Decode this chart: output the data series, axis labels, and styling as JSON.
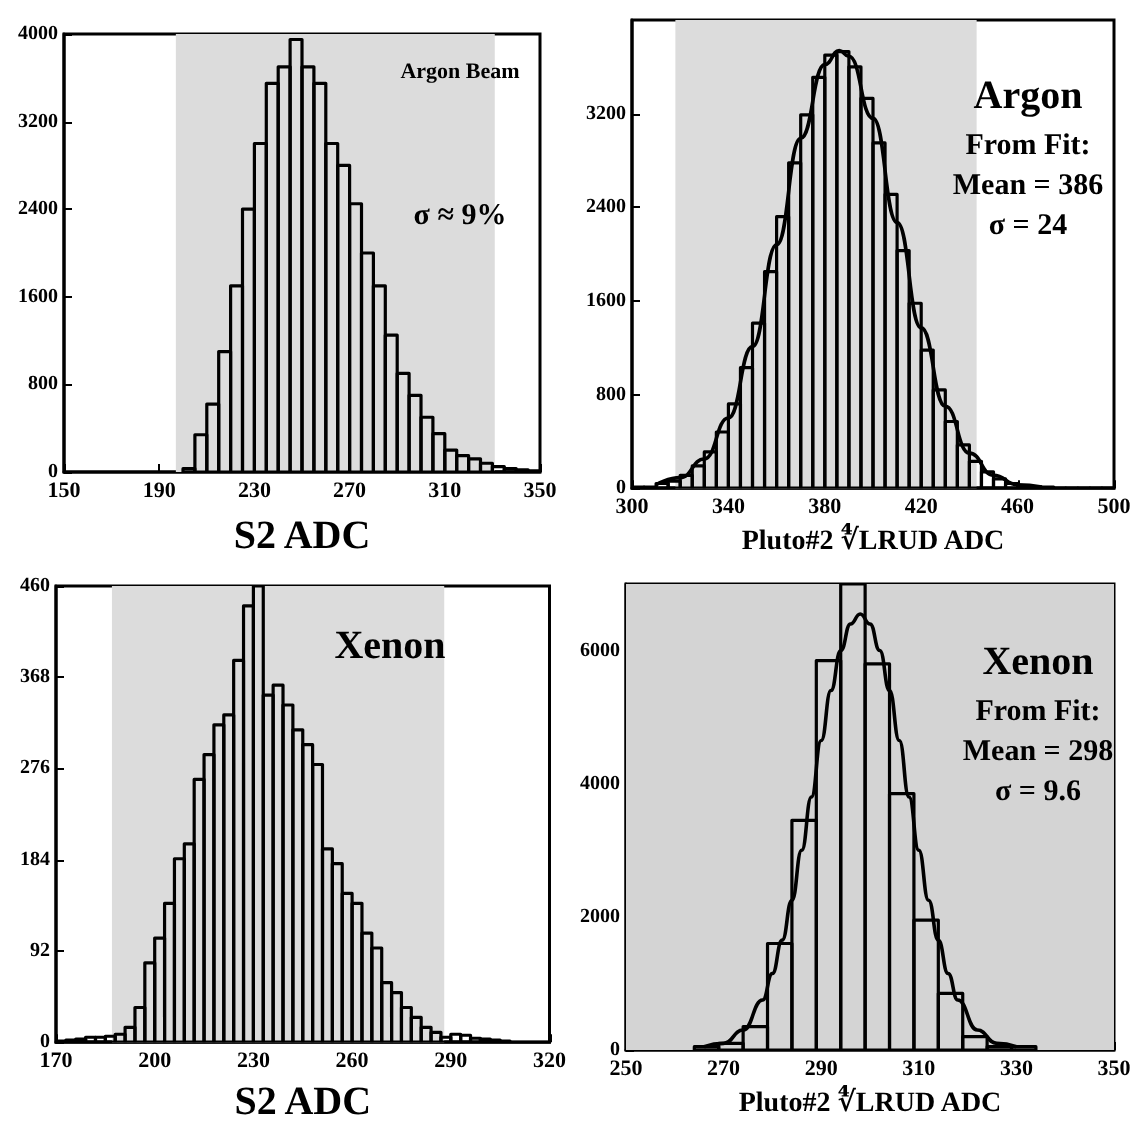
{
  "chart_data": [
    {
      "type": "histogram",
      "xlabel": "S2 ADC",
      "annotations": [
        "Argon Beam",
        "σ ≈ 9%"
      ],
      "xlim": [
        150,
        350
      ],
      "xticks": [
        150,
        190,
        230,
        270,
        310,
        350
      ],
      "ylim": [
        0,
        4000
      ],
      "yticks": [
        0,
        800,
        1600,
        2400,
        3200,
        4000
      ],
      "bands": [
        {
          "axis": "x",
          "from": 197,
          "to": 331,
          "color": "#dcdcdc"
        }
      ],
      "color": "#000000",
      "bins": [
        200,
        205,
        210,
        215,
        220,
        225,
        230,
        235,
        240,
        245,
        250,
        255,
        260,
        265,
        270,
        275,
        280,
        285,
        290,
        295,
        300,
        305,
        310,
        315,
        320,
        325,
        330,
        335,
        340,
        345,
        350
      ],
      "values": [
        30,
        340,
        620,
        1100,
        1700,
        2400,
        3000,
        3550,
        3700,
        3950,
        3700,
        3550,
        3000,
        2800,
        2450,
        2000,
        1700,
        1250,
        900,
        700,
        500,
        350,
        200,
        150,
        120,
        80,
        50,
        30,
        20,
        10
      ]
    },
    {
      "type": "histogram",
      "xlabel": "Pluto#2 ∜LRUD ADC",
      "annotations": [
        "Argon",
        "From Fit:",
        "Mean = 386",
        "σ = 24"
      ],
      "xlim": [
        300,
        500
      ],
      "xticks": [
        300,
        340,
        380,
        420,
        460,
        500
      ],
      "ylim": [
        0,
        4000
      ],
      "yticks": [
        0,
        800,
        1600,
        2400,
        3200
      ],
      "bands": [
        {
          "axis": "x",
          "from": 318,
          "to": 443,
          "color": "#dcdcdc"
        }
      ],
      "series": [
        {
          "type": "histogram",
          "color": "#000000",
          "bins": [
            300,
            305,
            310,
            315,
            320,
            325,
            330,
            335,
            340,
            345,
            350,
            355,
            360,
            365,
            370,
            375,
            380,
            385,
            390,
            395,
            400,
            405,
            410,
            415,
            420,
            425,
            430,
            435,
            440,
            445,
            450,
            455,
            460,
            465,
            470,
            475,
            480,
            485,
            490,
            495,
            500
          ],
          "values": [
            10,
            10,
            40,
            60,
            110,
            190,
            310,
            480,
            720,
            1030,
            1410,
            1850,
            2320,
            2780,
            3190,
            3510,
            3700,
            3730,
            3600,
            3330,
            2950,
            2510,
            2030,
            1580,
            1180,
            840,
            570,
            370,
            230,
            140,
            80,
            40,
            20,
            10,
            10,
            0,
            0,
            0,
            0,
            0
          ]
        },
        {
          "type": "line",
          "color": "#000000",
          "x": [
            310,
            320,
            330,
            340,
            350,
            360,
            370,
            380,
            386,
            390,
            400,
            410,
            420,
            430,
            440,
            450,
            460,
            470
          ],
          "values": [
            30,
            90,
            250,
            600,
            1210,
            2080,
            2990,
            3620,
            3740,
            3690,
            3160,
            2270,
            1370,
            700,
            300,
            110,
            30,
            10
          ]
        }
      ]
    },
    {
      "type": "histogram",
      "xlabel": "S2 ADC",
      "annotations": [
        "Xenon"
      ],
      "xlim": [
        170,
        320
      ],
      "xticks": [
        170,
        200,
        230,
        260,
        290,
        320
      ],
      "ylim": [
        0,
        460
      ],
      "yticks": [
        0,
        92,
        184,
        276,
        368,
        460
      ],
      "bands": [
        {
          "axis": "x",
          "from": 187,
          "to": 288,
          "color": "#dcdcdc"
        }
      ],
      "color": "#000000",
      "bins": [
        170,
        173,
        176,
        179,
        182,
        185,
        188,
        191,
        194,
        197,
        200,
        203,
        206,
        209,
        212,
        215,
        218,
        221,
        224,
        227,
        230,
        233,
        236,
        239,
        242,
        245,
        248,
        251,
        254,
        257,
        260,
        263,
        266,
        269,
        272,
        275,
        278,
        281,
        284,
        287,
        290,
        293,
        296,
        299,
        302,
        305,
        308
      ],
      "values": [
        1,
        2,
        3,
        5,
        5,
        6,
        8,
        15,
        35,
        80,
        105,
        140,
        185,
        200,
        265,
        290,
        320,
        330,
        385,
        440,
        460,
        350,
        360,
        340,
        315,
        300,
        280,
        195,
        180,
        150,
        140,
        110,
        95,
        60,
        50,
        35,
        25,
        15,
        10,
        5,
        8,
        7,
        4,
        3,
        2,
        1
      ]
    },
    {
      "type": "histogram",
      "xlabel": "Pluto#2 ∜LRUD ADC",
      "annotations": [
        "Xenon",
        "From Fit:",
        "Mean = 298",
        "σ = 9.6"
      ],
      "xlim": [
        250,
        350
      ],
      "xticks": [
        250,
        270,
        290,
        310,
        330,
        350
      ],
      "ylim": [
        0,
        7000
      ],
      "yticks": [
        0,
        2000,
        4000,
        6000
      ],
      "bands": [
        {
          "axis": "x",
          "from": 250,
          "to": 350,
          "color": "#d4d4d4"
        }
      ],
      "series": [
        {
          "type": "histogram",
          "color": "#000000",
          "bins": [
            264,
            269,
            274,
            279,
            284,
            289,
            294,
            299,
            304,
            309,
            314,
            319,
            324,
            329,
            334
          ],
          "values": [
            50,
            100,
            350,
            1600,
            3450,
            5850,
            7000,
            5800,
            3850,
            1950,
            850,
            200,
            50,
            50
          ]
        },
        {
          "type": "line",
          "color": "#000000",
          "x": [
            266,
            270,
            274,
            278,
            280,
            282,
            284,
            286,
            288,
            290,
            292,
            294,
            296,
            298,
            300,
            302,
            304,
            306,
            308,
            310,
            312,
            314,
            316,
            318,
            322,
            326,
            330
          ],
          "values": [
            50,
            100,
            300,
            750,
            1150,
            1650,
            2250,
            3000,
            3800,
            4650,
            5400,
            6000,
            6400,
            6550,
            6400,
            6000,
            5400,
            4650,
            3800,
            3000,
            2250,
            1650,
            1150,
            750,
            300,
            100,
            50
          ]
        }
      ]
    }
  ]
}
